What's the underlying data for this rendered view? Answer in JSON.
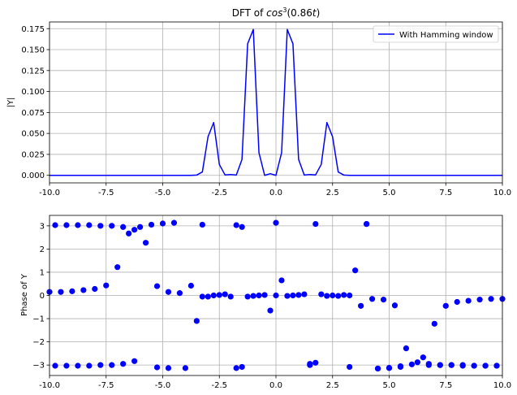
{
  "chart_data": [
    {
      "type": "line",
      "title_prefix": "DFT of ",
      "title_func": "cos",
      "title_exp": "3",
      "title_arg": "(0.86",
      "title_var": "t",
      "title_close": ")",
      "xlabel": "",
      "ylabel": "|Y|",
      "xlim": [
        -10,
        10
      ],
      "ylim": [
        -0.009,
        0.183
      ],
      "grid": true,
      "legend_position": "top-right",
      "xticks": [
        "-10.0",
        "-7.5",
        "-5.0",
        "-2.5",
        "0.0",
        "2.5",
        "5.0",
        "7.5",
        "10.0"
      ],
      "yticks": [
        "0.000",
        "0.025",
        "0.050",
        "0.075",
        "0.100",
        "0.125",
        "0.150",
        "0.175"
      ],
      "series": [
        {
          "name": "With Hamming window",
          "color": "#0000ff",
          "x": [
            -10,
            -9.75,
            -9.5,
            -9.25,
            -9,
            -8.75,
            -8.5,
            -8.25,
            -8,
            -7.75,
            -7.5,
            -7.25,
            -7,
            -6.75,
            -6.5,
            -6.25,
            -6,
            -5.75,
            -5.5,
            -5.25,
            -5,
            -4.75,
            -4.5,
            -4.25,
            -4,
            -3.75,
            -3.5,
            -3.25,
            -3,
            -2.75,
            -2.5,
            -2.25,
            -2,
            -1.75,
            -1.5,
            -1.25,
            -1,
            -0.75,
            -0.5,
            -0.25,
            0,
            0.25,
            0.5,
            0.75,
            1,
            1.25,
            1.5,
            1.75,
            2,
            2.25,
            2.5,
            2.75,
            3,
            3.25,
            3.5,
            3.75,
            4,
            4.25,
            4.5,
            4.75,
            5,
            5.25,
            5.5,
            5.75,
            6,
            6.25,
            6.5,
            6.75,
            7,
            7.25,
            7.5,
            7.75,
            8,
            8.25,
            8.5,
            8.75,
            9,
            9.25,
            9.5,
            9.75,
            10
          ],
          "y": [
            0,
            0,
            0,
            0,
            0,
            0,
            0,
            0,
            0,
            0,
            0,
            0,
            0,
            0,
            0,
            0,
            0,
            0,
            0,
            0,
            0,
            0,
            0,
            0,
            0,
            0,
            0.0003,
            0.004,
            0.046,
            0.063,
            0.013,
            0.0005,
            0.001,
            0.0003,
            0.019,
            0.157,
            0.174,
            0.027,
            0,
            0.002,
            0,
            0.027,
            0.174,
            0.157,
            0.019,
            0.0003,
            0.001,
            0.0005,
            0.013,
            0.063,
            0.046,
            0.004,
            0.0003,
            0,
            0,
            0,
            0,
            0,
            0,
            0,
            0,
            0,
            0,
            0,
            0,
            0,
            0,
            0,
            0,
            0,
            0,
            0,
            0,
            0,
            0,
            0,
            0,
            0,
            0,
            0,
            0
          ]
        }
      ]
    },
    {
      "type": "scatter",
      "title": "",
      "xlabel": "",
      "ylabel": "Phase of Y",
      "xlim": [
        -10,
        10
      ],
      "ylim": [
        -3.45,
        3.45
      ],
      "grid": true,
      "xticks": [
        "-10.0",
        "-7.5",
        "-5.0",
        "-2.5",
        "0.0",
        "2.5",
        "5.0",
        "7.5",
        "10.0"
      ],
      "yticks": [
        "−3",
        "−2",
        "−1",
        "0",
        "1",
        "2",
        "3"
      ],
      "series": [
        {
          "color": "#0000ff",
          "x": [
            -10,
            -9.75,
            -9.5,
            -9.25,
            -9,
            -8.75,
            -8.5,
            -8.25,
            -8,
            -7.75,
            -7.5,
            -7.25,
            -7,
            -6.75,
            -6.5,
            -6.25,
            -6,
            -5.75,
            -5.5,
            -5.25,
            -5,
            -4.75,
            -4.5,
            -4.25,
            -4,
            -3.75,
            -3.5,
            -3.25,
            -3,
            -2.75,
            -2.5,
            -2.25,
            -2,
            -1.75,
            -1.5,
            -1.25,
            -1,
            -0.75,
            -0.5,
            -0.25,
            0,
            0.25,
            0.5,
            0.75,
            1,
            1.25,
            1.5,
            1.75,
            2,
            2.25,
            2.5,
            2.75,
            3,
            3.25,
            3.5,
            3.75,
            4,
            4.25,
            4.5,
            4.75,
            5,
            5.25,
            5.5,
            5.75,
            6,
            6.25,
            6.5,
            6.75,
            7,
            7.25,
            7.5,
            7.75,
            8,
            8.25,
            8.5,
            8.75,
            9,
            9.25,
            9.5,
            9.75,
            10,
            -9.75,
            -9.25,
            -8.75,
            -8.25,
            -7.75,
            -7.25,
            -6.75,
            -6.25,
            -5.25,
            -4.75,
            -3.25,
            -1.75,
            -1.5,
            0,
            1.5,
            1.75,
            3.25,
            4,
            4.5,
            5.0,
            5.5,
            6.75,
            7.25,
            7.75,
            8.25,
            8.75,
            9.25,
            9.75
          ],
          "y": [
            0.15,
            3.03,
            0.15,
            3.03,
            0.18,
            3.03,
            0.23,
            3.03,
            0.28,
            3.0,
            0.43,
            3.0,
            1.22,
            2.95,
            2.67,
            2.83,
            2.95,
            2.27,
            3.05,
            0.4,
            3.1,
            0.15,
            3.13,
            0.1,
            -3.13,
            0.42,
            -1.1,
            3.05,
            -0.05,
            0.0,
            0.02,
            0.05,
            -0.05,
            -3.13,
            2.95,
            -0.05,
            -0.02,
            0.0,
            0.02,
            -0.65,
            3.13,
            0.65,
            -0.02,
            0.0,
            0.02,
            0.05,
            -2.95,
            3.08,
            0.05,
            -0.02,
            0.0,
            -0.02,
            0.02,
            -3.08,
            1.08,
            -0.45,
            3.08,
            -0.15,
            -3.15,
            -0.18,
            -3.13,
            -0.43,
            -3.08,
            -2.28,
            -2.97,
            -2.88,
            -2.67,
            -2.95,
            -1.22,
            -3.0,
            -0.45,
            -3.0,
            -0.28,
            -3.03,
            -0.23,
            -3.03,
            -0.18,
            -3.03,
            -0.15,
            -3.03,
            -0.15,
            -3.03,
            -3.03,
            -3.03,
            -3.03,
            -3.0,
            -3.0,
            -2.95,
            -2.83,
            -3.1,
            -3.13,
            -0.05,
            3.03,
            -3.08,
            0.0,
            -3.0,
            -2.9,
            0.0,
            3.08,
            -3.15,
            -3.12,
            -3.05,
            -3.0,
            -3.0,
            -3.0,
            -3.0,
            -3.03,
            -3.03,
            -3.03
          ]
        }
      ]
    }
  ]
}
